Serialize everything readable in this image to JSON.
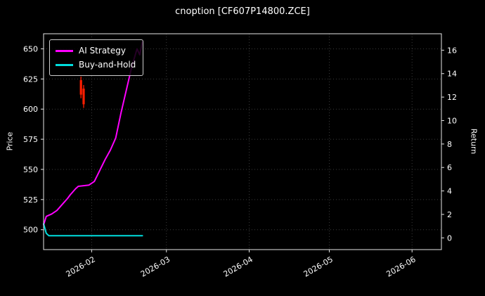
{
  "title": "cnoption [CF607P14800.ZCE]",
  "axes": {
    "left_label": "Price",
    "right_label": "Return",
    "x_ticks": [
      {
        "label": "2026-02",
        "date": "2026-02-01"
      },
      {
        "label": "2026-03",
        "date": "2026-03-01"
      },
      {
        "label": "2026-04",
        "date": "2026-04-01"
      },
      {
        "label": "2026-05",
        "date": "2026-05-01"
      },
      {
        "label": "2026-06",
        "date": "2026-06-01"
      }
    ],
    "left_ticks": [
      500,
      525,
      550,
      575,
      600,
      625,
      650
    ],
    "right_ticks": [
      0,
      2,
      4,
      6,
      8,
      10,
      12,
      14,
      16
    ]
  },
  "legend": {
    "items": [
      {
        "label": "AI Strategy",
        "color": "#ff00ff"
      },
      {
        "label": "Buy-and-Hold",
        "color": "#00dede"
      }
    ]
  },
  "colors": {
    "background": "#000000",
    "text": "#ffffff",
    "spine": "#e6e6e6",
    "grid": "#3c3c3c",
    "candle": "#ff1e00"
  },
  "chart_data": {
    "type": "line",
    "title": "cnoption [CF607P14800.ZCE]",
    "xlabel": "",
    "ylabel_left": "Price",
    "ylabel_right": "Return",
    "x_range": [
      "2026-01-14",
      "2026-06-12"
    ],
    "y_left_range": [
      483.5,
      662.5
    ],
    "y_right_range": [
      -1.0,
      17.4
    ],
    "grid": true,
    "legend_position": "upper-left",
    "series": [
      {
        "name": "AI Strategy",
        "type": "line",
        "axis": "left",
        "color": "#ff00ff",
        "width": 2,
        "points": [
          [
            "2026-01-14",
            504
          ],
          [
            "2026-01-15",
            511
          ],
          [
            "2026-01-16",
            512
          ],
          [
            "2026-01-17",
            513
          ],
          [
            "2026-01-19",
            516
          ],
          [
            "2026-01-21",
            521
          ],
          [
            "2026-01-23",
            526
          ],
          [
            "2026-01-24",
            529
          ],
          [
            "2026-01-26",
            534
          ],
          [
            "2026-01-27",
            536
          ],
          [
            "2026-01-31",
            537
          ],
          [
            "2026-02-02",
            540
          ],
          [
            "2026-02-04",
            549
          ],
          [
            "2026-02-06",
            558
          ],
          [
            "2026-02-08",
            566
          ],
          [
            "2026-02-10",
            576
          ],
          [
            "2026-02-12",
            597
          ],
          [
            "2026-02-14",
            616
          ],
          [
            "2026-02-16",
            635
          ],
          [
            "2026-02-18",
            650
          ],
          [
            "2026-02-19",
            645
          ],
          [
            "2026-02-20",
            656
          ]
        ]
      },
      {
        "name": "Buy-and-Hold",
        "type": "line",
        "axis": "left",
        "color": "#00dede",
        "width": 2,
        "points": [
          [
            "2026-01-14",
            505
          ],
          [
            "2026-01-15",
            497
          ],
          [
            "2026-01-16",
            495
          ],
          [
            "2026-02-20",
            495
          ]
        ]
      }
    ],
    "candles": [
      {
        "date": "2026-01-28",
        "open": 624,
        "close": 612,
        "high": 627,
        "low": 609
      },
      {
        "date": "2026-01-29",
        "open": 617,
        "close": 604,
        "high": 620,
        "low": 601
      }
    ]
  }
}
